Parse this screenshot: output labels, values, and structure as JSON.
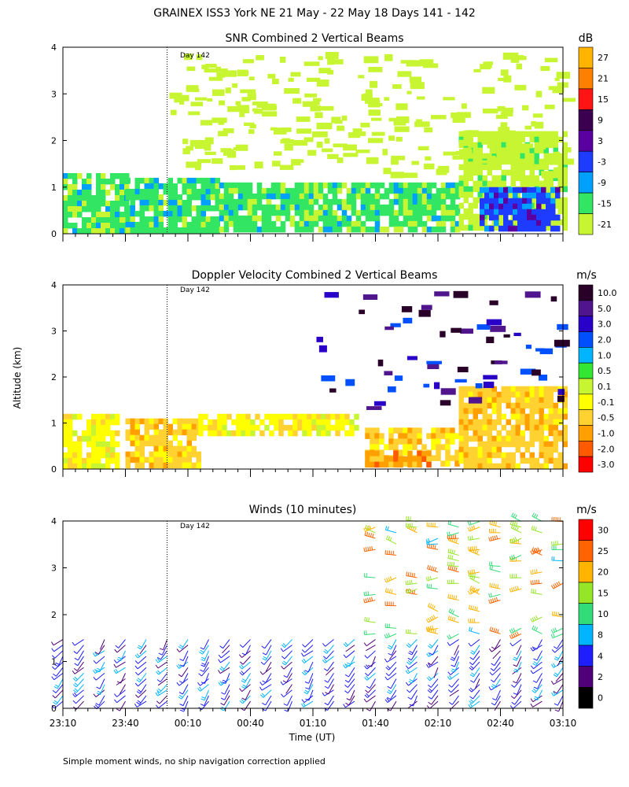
{
  "figure": {
    "title": "GRAINEX ISS3 York NE  21 May - 22 May 18 Days 141 - 142",
    "ylabel": "Altitude (km)",
    "xlabel": "Time (UT)",
    "footnote": "Simple moment winds, no ship navigation correction applied",
    "day_marker": "Day 142"
  },
  "chart_data": [
    {
      "type": "heatmap",
      "title": "SNR Combined 2 Vertical Beams",
      "unit": "dB",
      "x_ticks": [
        "23:10",
        "23:40",
        "00:10",
        "00:40",
        "01:10",
        "01:40",
        "02:10",
        "02:40",
        "03:10"
      ],
      "y_ticks": [
        0,
        1,
        2,
        3,
        4
      ],
      "ylim": [
        0,
        4
      ],
      "colorbar": {
        "labels": [
          "27",
          "21",
          "15",
          "9",
          "3",
          "-3",
          "-9",
          "-15",
          "-21"
        ],
        "colors": [
          "#ffb400",
          "#ff7f00",
          "#ff1414",
          "#3c0050",
          "#5a00a0",
          "#1e3cff",
          "#00a0ff",
          "#32e664",
          "#c8f532"
        ]
      },
      "regions": [
        {
          "t0": 0.0,
          "t1": 30.0,
          "z0": 0.1,
          "z1": 1.3,
          "level": -17
        },
        {
          "t0": 30.0,
          "t1": 75.0,
          "z0": 0.1,
          "z1": 1.2,
          "level": -17
        },
        {
          "t0": 75.0,
          "t1": 190.0,
          "z0": 0.1,
          "z1": 1.1,
          "level": -17
        },
        {
          "t0": 190.0,
          "t1": 240.0,
          "z0": 0.1,
          "z1": 2.2,
          "level": -19
        },
        {
          "t0": 200.0,
          "t1": 238.0,
          "z0": 0.1,
          "z1": 1.0,
          "level": -6
        }
      ],
      "annotation": "Day 142"
    },
    {
      "type": "heatmap",
      "title": "Doppler Velocity Combined 2 Vertical Beams",
      "unit": "m/s",
      "x_ticks": [
        "23:10",
        "23:40",
        "00:10",
        "00:40",
        "01:10",
        "01:40",
        "02:10",
        "02:40",
        "03:10"
      ],
      "y_ticks": [
        0,
        1,
        2,
        3,
        4
      ],
      "ylim": [
        0,
        4
      ],
      "colorbar": {
        "labels": [
          "10.0",
          "5.0",
          "3.0",
          "2.0",
          "1.0",
          "0.5",
          "0.1",
          "-0.1",
          "-0.5",
          "-1.0",
          "-2.0",
          "-3.0"
        ],
        "colors": [
          "#280028",
          "#50148c",
          "#2800c8",
          "#0050ff",
          "#00b4ff",
          "#32e632",
          "#c8f532",
          "#ffff00",
          "#ffd232",
          "#ffa000",
          "#ff5a00",
          "#ff0000"
        ]
      },
      "regions": [
        {
          "t0": 0.0,
          "t1": 25.0,
          "z0": 0.1,
          "z1": 1.2,
          "level": -0.3
        },
        {
          "t0": 30.0,
          "t1": 65.0,
          "z0": 0.1,
          "z1": 1.1,
          "level": -0.4
        },
        {
          "t0": 65.0,
          "t1": 140.0,
          "z0": 0.8,
          "z1": 1.2,
          "level": -0.2
        },
        {
          "t0": 145.0,
          "t1": 190.0,
          "z0": 0.1,
          "z1": 0.9,
          "level": -0.6
        },
        {
          "t0": 145.0,
          "t1": 175.0,
          "z0": 0.1,
          "z1": 0.4,
          "level": -1.5
        },
        {
          "t0": 190.0,
          "t1": 240.0,
          "z0": 0.1,
          "z1": 1.8,
          "level": -0.5
        }
      ],
      "annotation": "Day 142"
    },
    {
      "type": "wind-barbs",
      "title": "Winds (10 minutes)",
      "unit": "m/s",
      "x_ticks": [
        "23:10",
        "23:40",
        "00:10",
        "00:40",
        "01:10",
        "01:40",
        "02:10",
        "02:40",
        "03:10"
      ],
      "y_ticks": [
        0,
        1,
        2,
        3,
        4
      ],
      "ylim": [
        0,
        4
      ],
      "time_step_minutes": 10,
      "colorbar": {
        "labels": [
          "30",
          "25",
          "20",
          "15",
          "10",
          "8",
          "4",
          "2",
          "0"
        ],
        "colors": [
          "#ff0000",
          "#ff6400",
          "#ffb400",
          "#96e628",
          "#32dc78",
          "#00b4ff",
          "#1e1eff",
          "#500078",
          "#000000"
        ]
      },
      "annotation": "Day 142"
    }
  ]
}
